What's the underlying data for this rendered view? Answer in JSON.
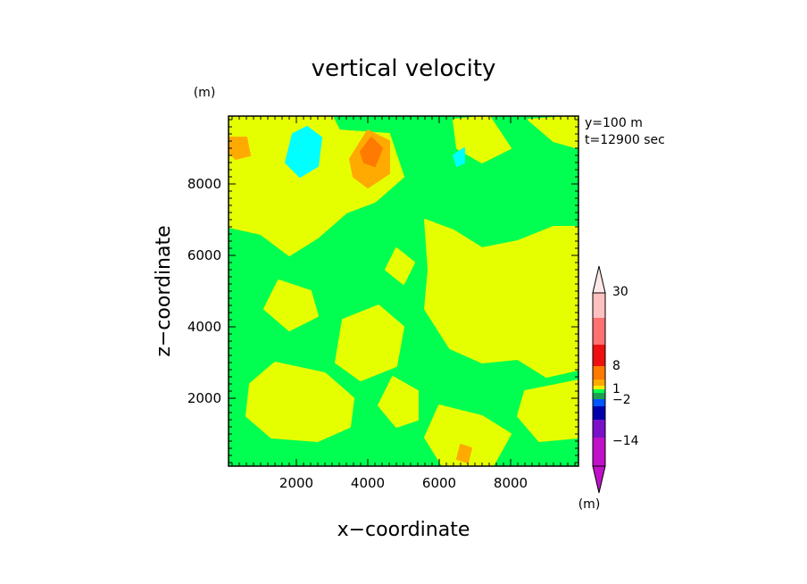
{
  "chart_data": {
    "type": "heatmap",
    "title": "vertical velocity",
    "xlabel": "x−coordinate",
    "ylabel": "z−coordinate",
    "x_unit": "(m)",
    "y_unit": "(m)",
    "annotations": [
      "y=100 m",
      "t=12900 sec"
    ],
    "xlim": [
      100,
      9900
    ],
    "ylim": [
      100,
      9900
    ],
    "x_ticks": [
      2000,
      4000,
      6000,
      8000
    ],
    "x_tick_labels": [
      "2000",
      "4000",
      "6000",
      "8000"
    ],
    "y_ticks": [
      2000,
      4000,
      6000,
      8000
    ],
    "y_tick_labels": [
      "2000",
      "4000",
      "6000",
      "8000"
    ],
    "colorbar": {
      "unit": "(m)",
      "labels": [
        "30",
        "8",
        "1",
        "−2",
        "−14"
      ],
      "colors": [
        "#ffc0c0",
        "#ff7070",
        "#ee1010",
        "#ff7a00",
        "#ffaa00",
        "#ffee00",
        "#00ff50",
        "#1aa050",
        "#0055ff",
        "#0000aa",
        "#7a10c8",
        "#c010c8"
      ]
    },
    "background_level_color": "#00ff50",
    "fields": [
      {
        "level": "0 to 1",
        "color": "#e6ff00",
        "regions": [
          [
            [
              100,
              9900
            ],
            [
              3000,
              9900
            ],
            [
              3200,
              9500
            ],
            [
              4600,
              9400
            ],
            [
              5000,
              8200
            ],
            [
              4200,
              7500
            ],
            [
              3400,
              7200
            ],
            [
              2600,
              6500
            ],
            [
              1800,
              6000
            ],
            [
              1000,
              6600
            ],
            [
              100,
              6800
            ]
          ],
          [
            [
              5600,
              7000
            ],
            [
              6400,
              6700
            ],
            [
              7200,
              6200
            ],
            [
              8200,
              6400
            ],
            [
              9200,
              6800
            ],
            [
              9900,
              6800
            ],
            [
              9900,
              2800
            ],
            [
              9000,
              2600
            ],
            [
              8200,
              3100
            ],
            [
              7200,
              3000
            ],
            [
              6300,
              3400
            ],
            [
              5600,
              4500
            ],
            [
              5700,
              5600
            ]
          ],
          [
            [
              3300,
              4200
            ],
            [
              4300,
              4600
            ],
            [
              5000,
              4000
            ],
            [
              4800,
              2900
            ],
            [
              3800,
              2500
            ],
            [
              3100,
              3000
            ]
          ],
          [
            [
              1400,
              3000
            ],
            [
              2800,
              2700
            ],
            [
              3600,
              2000
            ],
            [
              3500,
              1200
            ],
            [
              2600,
              800
            ],
            [
              1300,
              900
            ],
            [
              600,
              1500
            ],
            [
              700,
              2400
            ]
          ],
          [
            [
              4700,
              2600
            ],
            [
              5400,
              2200
            ],
            [
              5400,
              1400
            ],
            [
              4800,
              1200
            ],
            [
              4300,
              1800
            ]
          ],
          [
            [
              6000,
              1800
            ],
            [
              7200,
              1500
            ],
            [
              8000,
              1000
            ],
            [
              7500,
              100
            ],
            [
              6100,
              100
            ],
            [
              5600,
              900
            ]
          ],
          [
            [
              8400,
              2200
            ],
            [
              9900,
              2500
            ],
            [
              9900,
              900
            ],
            [
              8800,
              800
            ],
            [
              8200,
              1500
            ]
          ],
          [
            [
              1500,
              5300
            ],
            [
              2400,
              5000
            ],
            [
              2600,
              4300
            ],
            [
              1800,
              3900
            ],
            [
              1100,
              4500
            ]
          ],
          [
            [
              4800,
              6200
            ],
            [
              5300,
              5800
            ],
            [
              5000,
              5200
            ],
            [
              4500,
              5600
            ]
          ],
          [
            [
              6400,
              9800
            ],
            [
              7400,
              9900
            ],
            [
              8000,
              9000
            ],
            [
              7200,
              8600
            ],
            [
              6500,
              9000
            ]
          ],
          [
            [
              8500,
              9800
            ],
            [
              9900,
              9900
            ],
            [
              9900,
              9000
            ],
            [
              9200,
              9200
            ]
          ]
        ]
      },
      {
        "level": "1 to 4",
        "color": "#ffaa00",
        "regions": [
          [
            [
              3500,
              8700
            ],
            [
              4000,
              9500
            ],
            [
              4600,
              9200
            ],
            [
              4600,
              8300
            ],
            [
              4000,
              7900
            ],
            [
              3600,
              8200
            ]
          ],
          [
            [
              100,
              9300
            ],
            [
              600,
              9300
            ],
            [
              700,
              8800
            ],
            [
              300,
              8700
            ],
            [
              100,
              8900
            ]
          ],
          [
            [
              6600,
              700
            ],
            [
              6900,
              600
            ],
            [
              6800,
              200
            ],
            [
              6500,
              300
            ]
          ]
        ]
      },
      {
        "level": "4 to 8",
        "color": "#ff7a00",
        "regions": [
          [
            [
              3800,
              8900
            ],
            [
              4100,
              9300
            ],
            [
              4400,
              9000
            ],
            [
              4200,
              8500
            ],
            [
              3900,
              8600
            ]
          ]
        ]
      },
      {
        "level": "-2 to -1",
        "color": "#00ffff",
        "regions": [
          [
            [
              1900,
              9400
            ],
            [
              2300,
              9600
            ],
            [
              2700,
              9300
            ],
            [
              2600,
              8500
            ],
            [
              2100,
              8200
            ],
            [
              1700,
              8600
            ]
          ],
          [
            [
              6400,
              8800
            ],
            [
              6700,
              9000
            ],
            [
              6700,
              8600
            ],
            [
              6500,
              8500
            ]
          ]
        ]
      }
    ]
  }
}
